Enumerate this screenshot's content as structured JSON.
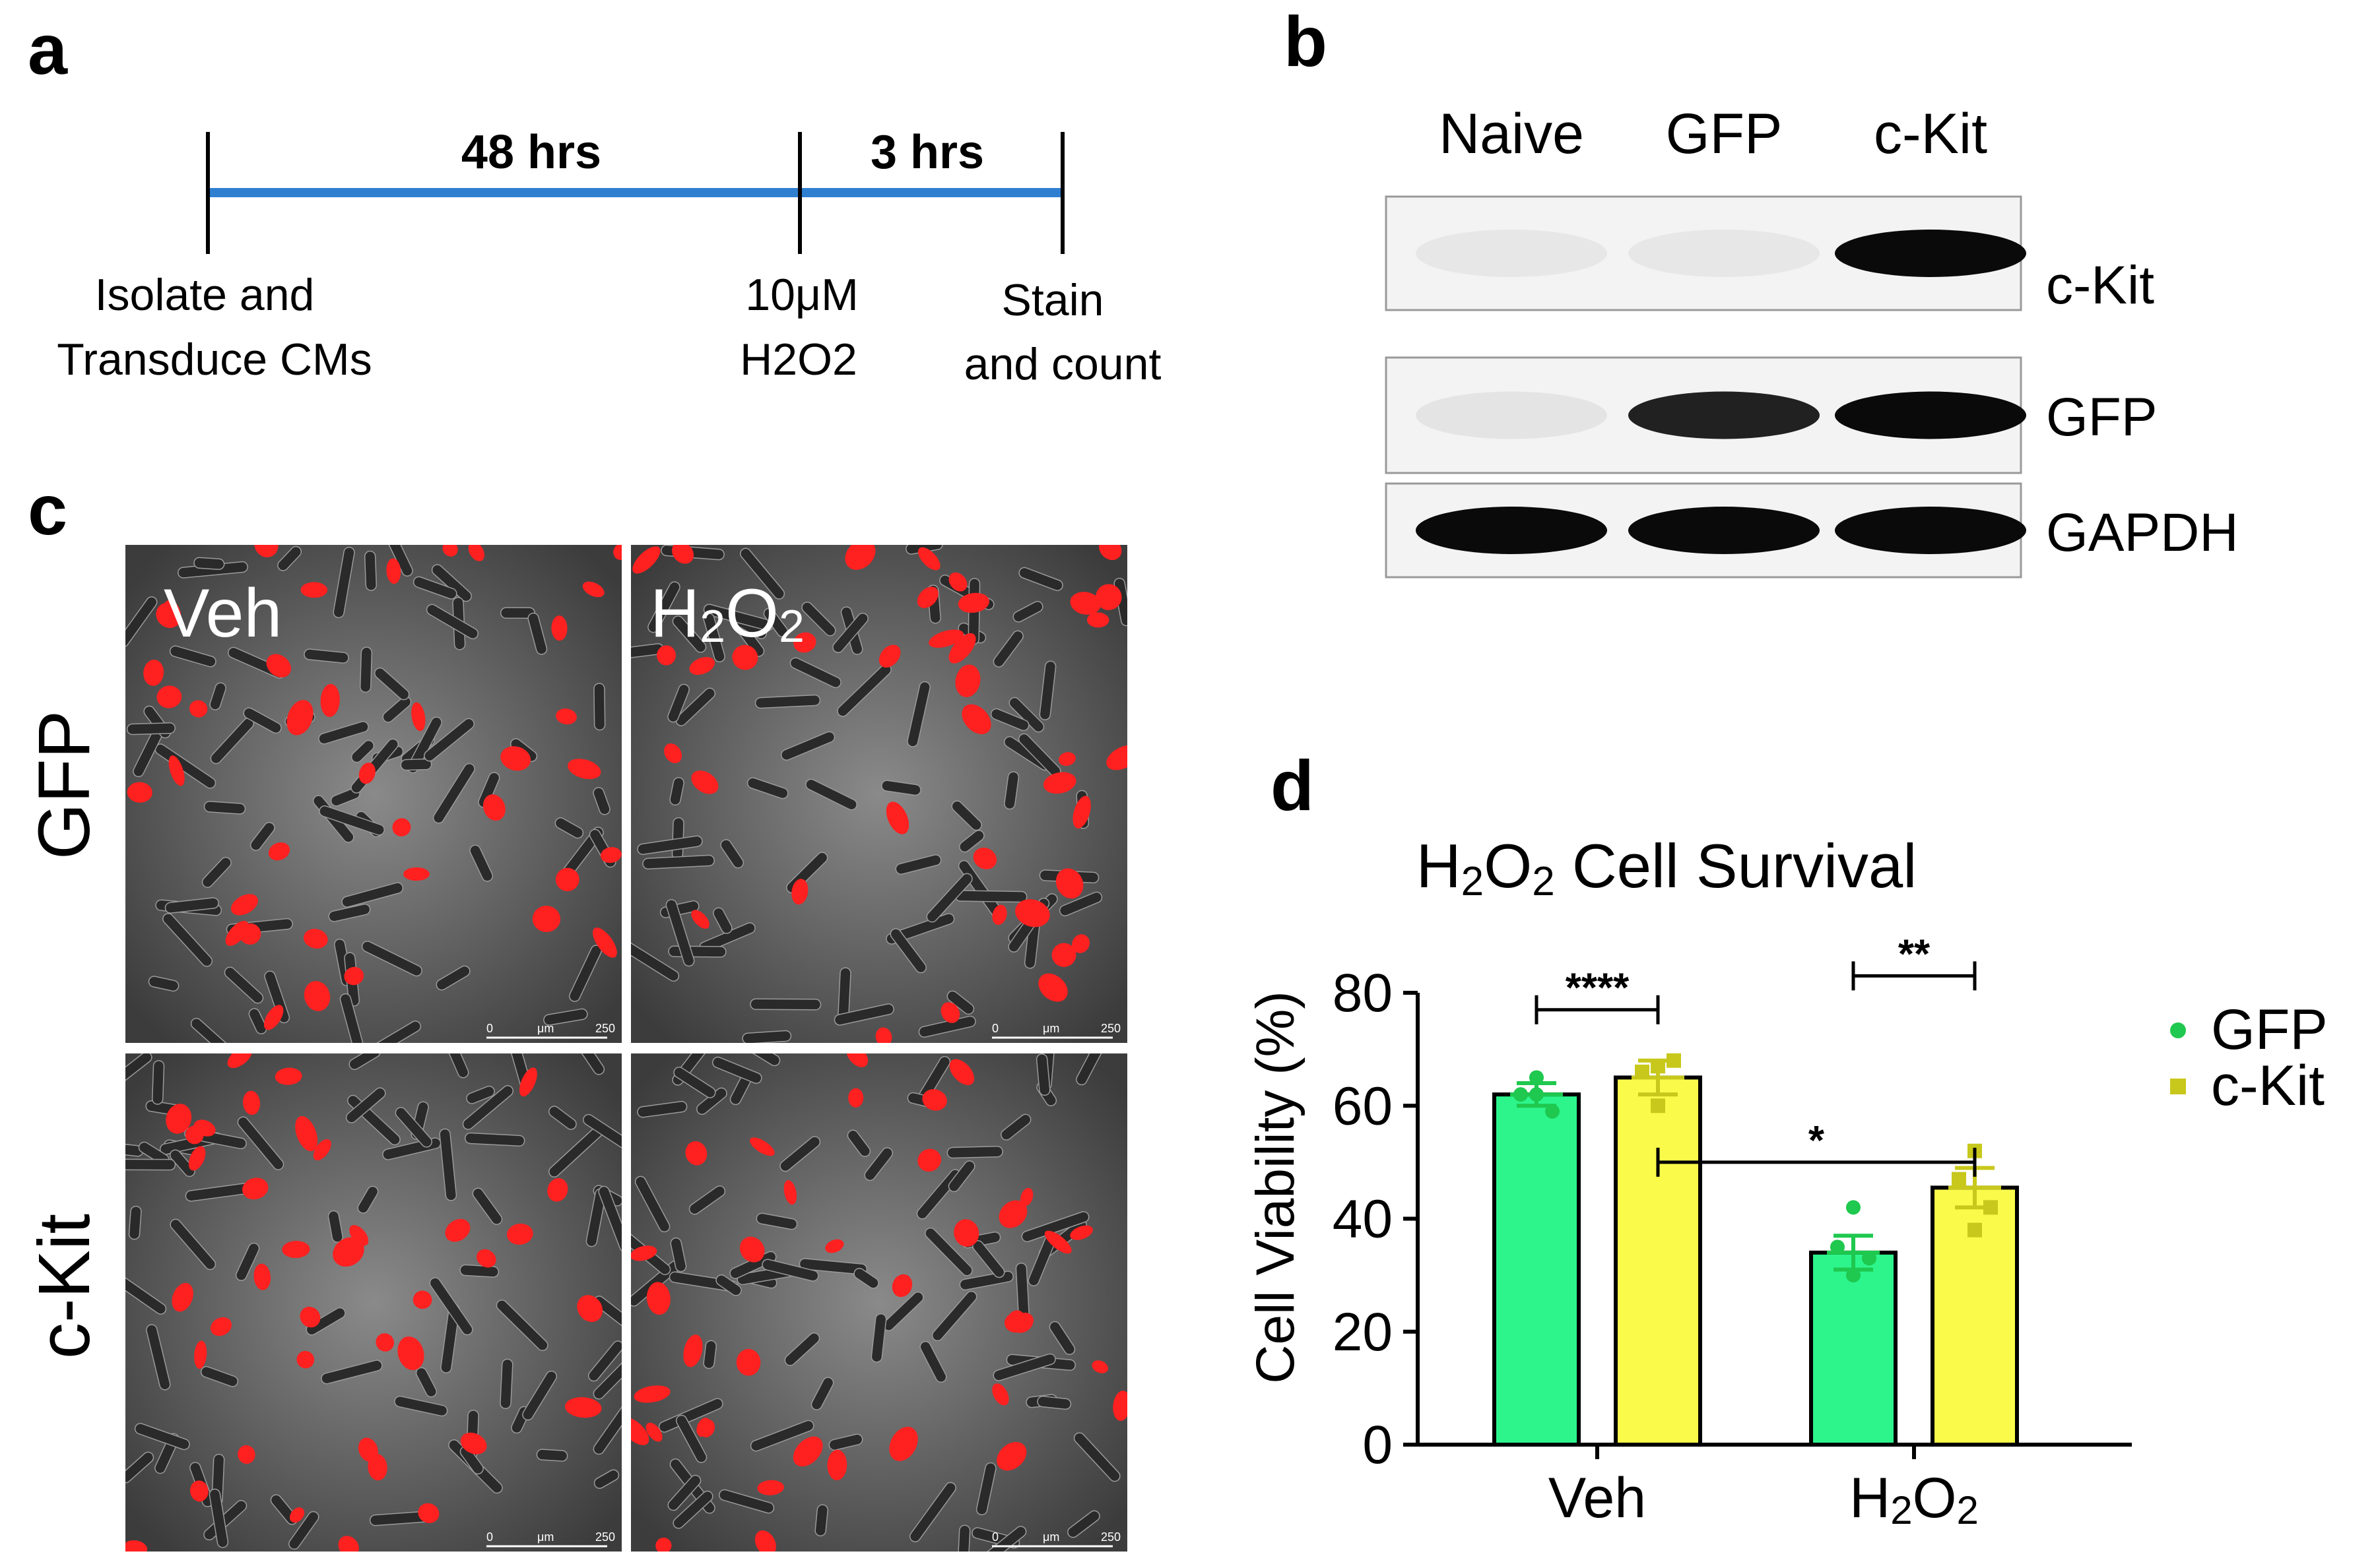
{
  "panels": {
    "a": {
      "letter": "a",
      "segments": [
        {
          "label": "48 hrs"
        },
        {
          "label": "3 hrs"
        }
      ],
      "steps": [
        {
          "lines": [
            "Isolate and",
            "Transduce CMs"
          ]
        },
        {
          "lines": [
            "10μM",
            "H2O2"
          ]
        },
        {
          "lines": [
            "Stain",
            "and count"
          ]
        }
      ]
    },
    "b": {
      "letter": "b",
      "lanes": [
        "Naive",
        "GFP",
        "c-Kit"
      ],
      "blots": [
        {
          "label": "c-Kit",
          "intensity": [
            0.02,
            0.02,
            1.0
          ]
        },
        {
          "label": "GFP",
          "intensity": [
            0.03,
            0.9,
            1.0
          ]
        },
        {
          "label": "GAPDH",
          "intensity": [
            1.0,
            1.0,
            1.0
          ]
        }
      ]
    },
    "c": {
      "letter": "c",
      "columns": [
        "Veh",
        "H2O2"
      ],
      "rows": [
        "GFP",
        "c-Kit"
      ],
      "scale_bar": {
        "label_zero": "0",
        "unit": "μm",
        "label_max": "250"
      }
    }
  },
  "colors": {
    "timeline": "#2f7fd1",
    "gfp_bar": "#2df58c",
    "ckit_bar": "#f9fa4a",
    "gfp_point": "#1fc84e",
    "ckit_point": "#c8c81c",
    "micrograph_bg": "#4a4a4a",
    "cell_red": "#ff2020"
  },
  "chart_data": {
    "panel_letter": "d",
    "type": "bar",
    "title": "H2O2  Cell  Survival",
    "ylabel": "Cell Viability (%)",
    "xlabel": "",
    "ylim": [
      0,
      80
    ],
    "yticks": [
      0,
      20,
      40,
      60,
      80
    ],
    "categories": [
      "Veh",
      "H2O2"
    ],
    "series": [
      {
        "name": "GFP",
        "values": [
          62,
          34
        ],
        "sem": [
          2,
          3
        ],
        "points": [
          [
            65,
            62,
            59,
            62
          ],
          [
            42,
            35,
            33,
            30
          ]
        ]
      },
      {
        "name": "c-Kit",
        "values": [
          65,
          45.5
        ],
        "sem": [
          3,
          3.5
        ],
        "points": [
          [
            67,
            66,
            68,
            60
          ],
          [
            52,
            47,
            42,
            38
          ]
        ]
      }
    ],
    "significance": [
      {
        "label": "**",
        "from": [
          1,
          0
        ],
        "to": [
          1,
          1
        ],
        "y": 83
      },
      {
        "label": "****",
        "from": [
          0,
          0
        ],
        "to": [
          0,
          1
        ],
        "y": 77
      },
      {
        "label": "*",
        "from": [
          0,
          1
        ],
        "to": [
          1,
          1
        ],
        "y": 50
      }
    ],
    "legend": {
      "position": "right"
    },
    "grid": false
  }
}
